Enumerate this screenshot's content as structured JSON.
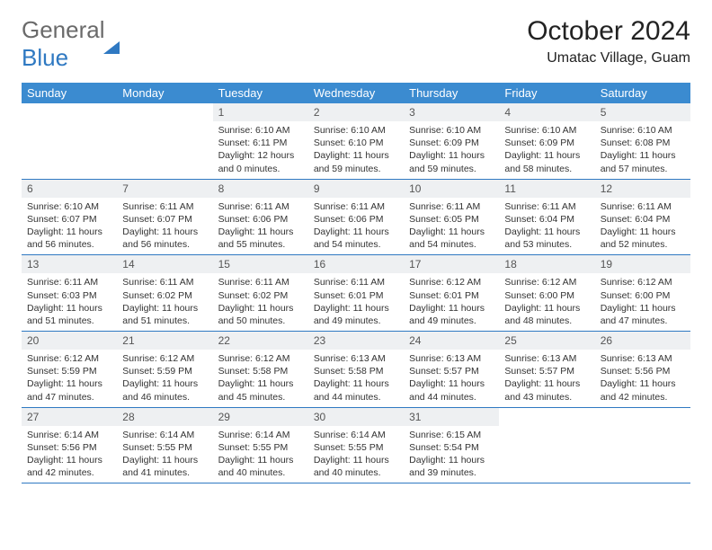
{
  "brand": {
    "part1": "General",
    "part2": "Blue"
  },
  "title": "October 2024",
  "location": "Umatac Village, Guam",
  "colors": {
    "header_bg": "#3b8bd0",
    "header_text": "#ffffff",
    "rule": "#2f79c2",
    "daynum_bg": "#eef0f2",
    "text": "#333333",
    "brand_gray": "#6a6a6a",
    "brand_blue": "#2f79c2",
    "background": "#ffffff"
  },
  "fonts": {
    "base_family": "Arial",
    "title_size_pt": 22,
    "cell_size_pt": 8
  },
  "weekdays": [
    "Sunday",
    "Monday",
    "Tuesday",
    "Wednesday",
    "Thursday",
    "Friday",
    "Saturday"
  ],
  "first_weekday_index": 2,
  "days": [
    {
      "n": 1,
      "sunrise": "6:10 AM",
      "sunset": "6:11 PM",
      "daylight": "12 hours and 0 minutes."
    },
    {
      "n": 2,
      "sunrise": "6:10 AM",
      "sunset": "6:10 PM",
      "daylight": "11 hours and 59 minutes."
    },
    {
      "n": 3,
      "sunrise": "6:10 AM",
      "sunset": "6:09 PM",
      "daylight": "11 hours and 59 minutes."
    },
    {
      "n": 4,
      "sunrise": "6:10 AM",
      "sunset": "6:09 PM",
      "daylight": "11 hours and 58 minutes."
    },
    {
      "n": 5,
      "sunrise": "6:10 AM",
      "sunset": "6:08 PM",
      "daylight": "11 hours and 57 minutes."
    },
    {
      "n": 6,
      "sunrise": "6:10 AM",
      "sunset": "6:07 PM",
      "daylight": "11 hours and 56 minutes."
    },
    {
      "n": 7,
      "sunrise": "6:11 AM",
      "sunset": "6:07 PM",
      "daylight": "11 hours and 56 minutes."
    },
    {
      "n": 8,
      "sunrise": "6:11 AM",
      "sunset": "6:06 PM",
      "daylight": "11 hours and 55 minutes."
    },
    {
      "n": 9,
      "sunrise": "6:11 AM",
      "sunset": "6:06 PM",
      "daylight": "11 hours and 54 minutes."
    },
    {
      "n": 10,
      "sunrise": "6:11 AM",
      "sunset": "6:05 PM",
      "daylight": "11 hours and 54 minutes."
    },
    {
      "n": 11,
      "sunrise": "6:11 AM",
      "sunset": "6:04 PM",
      "daylight": "11 hours and 53 minutes."
    },
    {
      "n": 12,
      "sunrise": "6:11 AM",
      "sunset": "6:04 PM",
      "daylight": "11 hours and 52 minutes."
    },
    {
      "n": 13,
      "sunrise": "6:11 AM",
      "sunset": "6:03 PM",
      "daylight": "11 hours and 51 minutes."
    },
    {
      "n": 14,
      "sunrise": "6:11 AM",
      "sunset": "6:02 PM",
      "daylight": "11 hours and 51 minutes."
    },
    {
      "n": 15,
      "sunrise": "6:11 AM",
      "sunset": "6:02 PM",
      "daylight": "11 hours and 50 minutes."
    },
    {
      "n": 16,
      "sunrise": "6:11 AM",
      "sunset": "6:01 PM",
      "daylight": "11 hours and 49 minutes."
    },
    {
      "n": 17,
      "sunrise": "6:12 AM",
      "sunset": "6:01 PM",
      "daylight": "11 hours and 49 minutes."
    },
    {
      "n": 18,
      "sunrise": "6:12 AM",
      "sunset": "6:00 PM",
      "daylight": "11 hours and 48 minutes."
    },
    {
      "n": 19,
      "sunrise": "6:12 AM",
      "sunset": "6:00 PM",
      "daylight": "11 hours and 47 minutes."
    },
    {
      "n": 20,
      "sunrise": "6:12 AM",
      "sunset": "5:59 PM",
      "daylight": "11 hours and 47 minutes."
    },
    {
      "n": 21,
      "sunrise": "6:12 AM",
      "sunset": "5:59 PM",
      "daylight": "11 hours and 46 minutes."
    },
    {
      "n": 22,
      "sunrise": "6:12 AM",
      "sunset": "5:58 PM",
      "daylight": "11 hours and 45 minutes."
    },
    {
      "n": 23,
      "sunrise": "6:13 AM",
      "sunset": "5:58 PM",
      "daylight": "11 hours and 44 minutes."
    },
    {
      "n": 24,
      "sunrise": "6:13 AM",
      "sunset": "5:57 PM",
      "daylight": "11 hours and 44 minutes."
    },
    {
      "n": 25,
      "sunrise": "6:13 AM",
      "sunset": "5:57 PM",
      "daylight": "11 hours and 43 minutes."
    },
    {
      "n": 26,
      "sunrise": "6:13 AM",
      "sunset": "5:56 PM",
      "daylight": "11 hours and 42 minutes."
    },
    {
      "n": 27,
      "sunrise": "6:14 AM",
      "sunset": "5:56 PM",
      "daylight": "11 hours and 42 minutes."
    },
    {
      "n": 28,
      "sunrise": "6:14 AM",
      "sunset": "5:55 PM",
      "daylight": "11 hours and 41 minutes."
    },
    {
      "n": 29,
      "sunrise": "6:14 AM",
      "sunset": "5:55 PM",
      "daylight": "11 hours and 40 minutes."
    },
    {
      "n": 30,
      "sunrise": "6:14 AM",
      "sunset": "5:55 PM",
      "daylight": "11 hours and 40 minutes."
    },
    {
      "n": 31,
      "sunrise": "6:15 AM",
      "sunset": "5:54 PM",
      "daylight": "11 hours and 39 minutes."
    }
  ],
  "labels": {
    "sunrise": "Sunrise:",
    "sunset": "Sunset:",
    "daylight": "Daylight:"
  }
}
